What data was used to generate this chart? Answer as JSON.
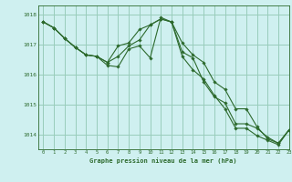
{
  "title": "Graphe pression niveau de la mer (hPa)",
  "background_color": "#cff0f0",
  "grid_color": "#99ccbb",
  "line_color": "#2d6a2d",
  "xlim": [
    -0.5,
    23
  ],
  "ylim": [
    1013.5,
    1018.3
  ],
  "yticks": [
    1014,
    1015,
    1016,
    1017,
    1018
  ],
  "xticks": [
    0,
    1,
    2,
    3,
    4,
    5,
    6,
    7,
    8,
    9,
    10,
    11,
    12,
    13,
    14,
    15,
    16,
    17,
    18,
    19,
    20,
    21,
    22,
    23
  ],
  "series": [
    [
      1017.75,
      1017.55,
      1017.2,
      1016.9,
      1016.65,
      1016.6,
      1016.4,
      1016.95,
      1017.05,
      1017.5,
      1017.65,
      1017.85,
      1017.75,
      1017.05,
      1016.65,
      1016.4,
      1015.75,
      1015.5,
      1014.85,
      1014.85,
      1014.25,
      1013.85,
      1013.7,
      1014.15
    ],
    [
      1017.75,
      1017.55,
      1017.2,
      1016.9,
      1016.65,
      1016.6,
      1016.4,
      1016.6,
      1016.95,
      1017.15,
      1017.65,
      1017.85,
      1017.75,
      1016.6,
      1016.15,
      1015.85,
      1015.3,
      1014.85,
      1014.2,
      1014.2,
      1013.95,
      1013.8,
      1013.65,
      1014.15
    ],
    [
      1017.75,
      1017.55,
      1017.2,
      1016.9,
      1016.65,
      1016.6,
      1016.3,
      1016.25,
      1016.85,
      1016.95,
      1016.55,
      1017.9,
      1017.75,
      1016.75,
      1016.55,
      1015.75,
      1015.25,
      1015.05,
      1014.35,
      1014.35,
      1014.2,
      1013.9,
      1013.7,
      1014.15
    ]
  ]
}
